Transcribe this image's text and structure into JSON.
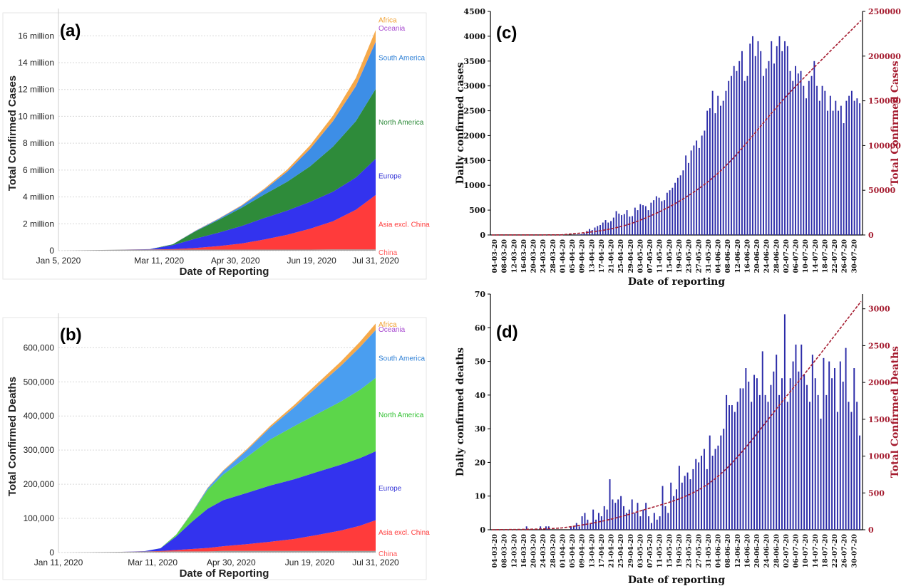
{
  "chart_data": [
    {
      "panel": "(a)",
      "type": "area",
      "ylabel": "Total Confirmed Cases",
      "xlabel": "Date of Reporting",
      "x_tick_labels": [
        "Jan 5, 2020",
        "Mar 11, 2020",
        "Apr 30, 2020",
        "Jun 19, 2020",
        "Jul 31, 2020"
      ],
      "x_ticks_days": [
        0,
        66,
        116,
        166,
        208
      ],
      "y_tick_labels": [
        "0",
        "2 million",
        "4 million",
        "6 million",
        "8 million",
        "10 million",
        "12 million",
        "14 million",
        "16 million"
      ],
      "y_tick_values": [
        0,
        2,
        4,
        6,
        8,
        10,
        12,
        14,
        16
      ],
      "ylim": [
        0,
        17.5
      ],
      "stacking": "cumulative",
      "x_days": [
        0,
        40,
        60,
        75,
        90,
        105,
        120,
        135,
        150,
        165,
        180,
        195,
        208
      ],
      "series": [
        {
          "name": "China",
          "color": "#9a9a9a",
          "values": [
            0,
            0.07,
            0.08,
            0.08,
            0.08,
            0.08,
            0.08,
            0.08,
            0.08,
            0.08,
            0.09,
            0.09,
            0.09
          ]
        },
        {
          "name": "Asia excl. China",
          "color": "#ff3b3b",
          "values": [
            0,
            0.0,
            0.01,
            0.03,
            0.12,
            0.26,
            0.45,
            0.75,
            1.1,
            1.55,
            2.1,
            2.95,
            4.05
          ]
        },
        {
          "name": "Europe",
          "color": "#3333ee",
          "values": [
            0,
            0.0,
            0.02,
            0.3,
            0.7,
            1.0,
            1.3,
            1.6,
            1.8,
            2.0,
            2.2,
            2.4,
            2.7
          ]
        },
        {
          "name": "North America",
          "color": "#2e8b3a",
          "values": [
            0,
            0.0,
            0.0,
            0.06,
            0.55,
            0.95,
            1.35,
            1.75,
            2.15,
            2.65,
            3.35,
            4.2,
            5.2
          ]
        },
        {
          "name": "South America",
          "color": "#3d8ee6",
          "values": [
            0,
            0.0,
            0.0,
            0.01,
            0.03,
            0.07,
            0.15,
            0.35,
            0.75,
            1.3,
            1.9,
            2.6,
            3.5
          ]
        },
        {
          "name": "Oceania",
          "color": "#a84bd1",
          "values": [
            0,
            0.0,
            0.0,
            0.0,
            0.01,
            0.01,
            0.01,
            0.01,
            0.01,
            0.01,
            0.01,
            0.02,
            0.03
          ]
        },
        {
          "name": "Africa",
          "color": "#f5a94a",
          "values": [
            0,
            0.0,
            0.0,
            0.0,
            0.01,
            0.02,
            0.04,
            0.08,
            0.15,
            0.25,
            0.4,
            0.6,
            0.85
          ]
        }
      ]
    },
    {
      "panel": "(b)",
      "type": "area",
      "ylabel": "Total Confirmed Deaths",
      "xlabel": "Date of Reporting",
      "x_tick_labels": [
        "Jan 11, 2020",
        "Mar 11, 2020",
        "Apr 30, 2020",
        "Jun 19, 2020",
        "Jul 31, 2020"
      ],
      "x_ticks_days": [
        0,
        60,
        110,
        160,
        202
      ],
      "y_tick_labels": [
        "0",
        "100,000",
        "200,000",
        "300,000",
        "400,000",
        "500,000",
        "600,000"
      ],
      "y_tick_values": [
        0,
        100000,
        200000,
        300000,
        400000,
        500000,
        600000
      ],
      "ylim": [
        0,
        680000
      ],
      "stacking": "cumulative",
      "x_days": [
        0,
        40,
        55,
        65,
        75,
        85,
        95,
        105,
        120,
        135,
        150,
        165,
        180,
        192,
        202
      ],
      "series": [
        {
          "name": "China",
          "color": "#9a9a9a",
          "values": [
            0,
            2000,
            3100,
            3200,
            3300,
            3300,
            3300,
            4600,
            4600,
            4600,
            4600,
            4600,
            4600,
            4600,
            4600
          ]
        },
        {
          "name": "Asia excl. China",
          "color": "#ff3b3b",
          "values": [
            0,
            0,
            200,
            1200,
            4000,
            7000,
            10000,
            14000,
            20000,
            27000,
            35000,
            47000,
            60000,
            74000,
            90000
          ]
        },
        {
          "name": "Europe",
          "color": "#3333ee",
          "values": [
            0,
            0,
            1000,
            8000,
            40000,
            80000,
            115000,
            135000,
            150000,
            165000,
            175000,
            185000,
            193000,
            198000,
            202000
          ]
        },
        {
          "name": "North America",
          "color": "#5cd64a",
          "values": [
            0,
            0,
            0,
            500,
            5000,
            25000,
            55000,
            75000,
            105000,
            135000,
            155000,
            170000,
            185000,
            200000,
            215000
          ]
        },
        {
          "name": "South America",
          "color": "#4a9ef0",
          "values": [
            0,
            0,
            0,
            0,
            300,
            1500,
            5000,
            10000,
            20000,
            35000,
            55000,
            80000,
            105000,
            125000,
            140000
          ]
        },
        {
          "name": "Oceania",
          "color": "#a84bd1",
          "values": [
            0,
            0,
            0,
            0,
            20,
            60,
            100,
            120,
            130,
            130,
            130,
            130,
            140,
            200,
            300
          ]
        },
        {
          "name": "Africa",
          "color": "#f5a94a",
          "values": [
            0,
            0,
            0,
            0,
            200,
            800,
            1500,
            2500,
            3500,
            5000,
            7000,
            9500,
            12500,
            15500,
            19000
          ]
        }
      ]
    },
    {
      "panel": "(c)",
      "type": "bar",
      "ylabel": "Daily confirmed cases",
      "y2label": "Total Confirmed Cases",
      "xlabel": "Date of reporting",
      "ylim": [
        0,
        4500
      ],
      "y2lim": [
        0,
        250000
      ],
      "y_ticks": [
        0,
        500,
        1000,
        1500,
        2000,
        2500,
        3000,
        3500,
        4000,
        4500
      ],
      "y2_ticks": [
        0,
        50000,
        100000,
        150000,
        200000,
        250000
      ],
      "bar_color": "#2b2ba8",
      "line_color": "#a51c30",
      "x_tick_labels": [
        "04-03-20",
        "08-03-20",
        "12-03-20",
        "16-03-20",
        "20-03-20",
        "24-03-20",
        "28-03-20",
        "01-04-20",
        "05-04-20",
        "09-04-20",
        "13-04-20",
        "17-04-20",
        "21-04-20",
        "25-04-20",
        "29-04-20",
        "03-05-20",
        "07-05-20",
        "11-05-20",
        "15-05-20",
        "19-05-20",
        "23-05-20",
        "27-05-20",
        "31-05-20",
        "04-06-20",
        "08-06-20",
        "12-06-20",
        "16-06-20",
        "20-06-20",
        "24-06-20",
        "28-06-20",
        "02-07-20",
        "06-07-20",
        "10-07-20",
        "14-07-20",
        "18-07-20",
        "22-07-20",
        "26-07-20",
        "30-07-20"
      ],
      "daily_values": [
        0,
        0,
        0,
        0,
        0,
        0,
        0,
        0,
        0,
        0,
        0,
        0,
        0,
        0,
        0,
        0,
        0,
        0,
        0,
        0,
        0,
        0,
        0,
        0,
        0,
        0,
        0,
        0,
        0,
        1,
        2,
        5,
        10,
        20,
        40,
        80,
        120,
        100,
        150,
        180,
        200,
        250,
        300,
        250,
        280,
        350,
        480,
        430,
        400,
        420,
        500,
        370,
        380,
        550,
        500,
        620,
        600,
        580,
        500,
        650,
        700,
        780,
        750,
        680,
        700,
        850,
        900,
        950,
        1050,
        1150,
        1200,
        1300,
        1600,
        1450,
        1700,
        1800,
        1900,
        1750,
        2000,
        2100,
        2500,
        2550,
        2900,
        2450,
        2800,
        2600,
        2700,
        2900,
        3100,
        3200,
        3400,
        3300,
        3500,
        3700,
        3100,
        3200,
        3850,
        4000,
        3600,
        3900,
        3700,
        3200,
        3350,
        3500,
        3900,
        3450,
        3800,
        4000,
        3700,
        3900,
        3800,
        3300,
        3100,
        3400,
        3250,
        3300,
        3000,
        2750,
        3100,
        3200,
        3500,
        3000,
        2700,
        3000,
        2900,
        2500,
        2800,
        2500,
        2700,
        2500,
        2600,
        2250,
        2700,
        2800,
        2900,
        2700,
        2750,
        2650
      ],
      "cumulative_x_labels": [
        "04-03-20",
        "01-04-20",
        "01-05-20",
        "01-06-20",
        "01-07-20",
        "30-07-20"
      ],
      "cumulative_values": [
        0,
        200,
        15000,
        65000,
        158000,
        240000
      ]
    },
    {
      "panel": "(d)",
      "type": "bar",
      "ylabel": "Daily confirmed deaths",
      "y2label": "Total Confirmed Deaths",
      "xlabel": "Date of reporting",
      "ylim": [
        0,
        70
      ],
      "y2lim": [
        0,
        3200
      ],
      "y_ticks": [
        0,
        10,
        20,
        30,
        40,
        50,
        60,
        70
      ],
      "y2_ticks": [
        0,
        500,
        1000,
        1500,
        2000,
        2500,
        3000
      ],
      "bar_color": "#2b2ba8",
      "line_color": "#a51c30",
      "x_tick_labels": [
        "04-03-20",
        "08-03-20",
        "12-03-20",
        "16-03-20",
        "20-03-20",
        "24-03-20",
        "28-03-20",
        "01-04-20",
        "05-04-20",
        "09-04-20",
        "13-04-20",
        "17-04-20",
        "21-04-20",
        "25-04-20",
        "29-04-20",
        "03-05-20",
        "07-05-20",
        "11-05-20",
        "15-05-20",
        "19-05-20",
        "23-05-20",
        "27-05-20",
        "31-05-20",
        "04-06-20",
        "08-06-20",
        "12-06-20",
        "16-06-20",
        "20-06-20",
        "24-06-20",
        "28-06-20",
        "02-07-20",
        "06-07-20",
        "10-07-20",
        "14-07-20",
        "18-07-20",
        "22-07-20",
        "26-07-20",
        "30-07-20"
      ],
      "daily_values": [
        0,
        0,
        0,
        0,
        0,
        0,
        0,
        0,
        0,
        0,
        0,
        0,
        1,
        0,
        0,
        0,
        0,
        1,
        0,
        1,
        1,
        0,
        0,
        0,
        0,
        0,
        0,
        0,
        1,
        1,
        2,
        1,
        4,
        5,
        3,
        2,
        6,
        3,
        5,
        4,
        7,
        6,
        15,
        9,
        8,
        9,
        10,
        7,
        5,
        6,
        9,
        5,
        8,
        4,
        6,
        8,
        4,
        2,
        5,
        3,
        4,
        13,
        7,
        5,
        14,
        10,
        12,
        19,
        14,
        16,
        17,
        15,
        18,
        21,
        20,
        22,
        24,
        18,
        28,
        22,
        24,
        25,
        28,
        30,
        40,
        37,
        37,
        35,
        38,
        42,
        42,
        48,
        44,
        38,
        46,
        45,
        40,
        53,
        40,
        38,
        43,
        47,
        52,
        40,
        45,
        64,
        38,
        45,
        50,
        55,
        47,
        55,
        46,
        43,
        38,
        52,
        45,
        40,
        33,
        51,
        40,
        50,
        45,
        48,
        35,
        50,
        44,
        54,
        38,
        35,
        48,
        38,
        28
      ],
      "cumulative_x_labels": [
        "04-03-20",
        "01-04-20",
        "01-05-20",
        "01-06-20",
        "01-07-20",
        "30-07-20"
      ],
      "cumulative_values": [
        0,
        25,
        240,
        680,
        1850,
        3100
      ]
    }
  ]
}
